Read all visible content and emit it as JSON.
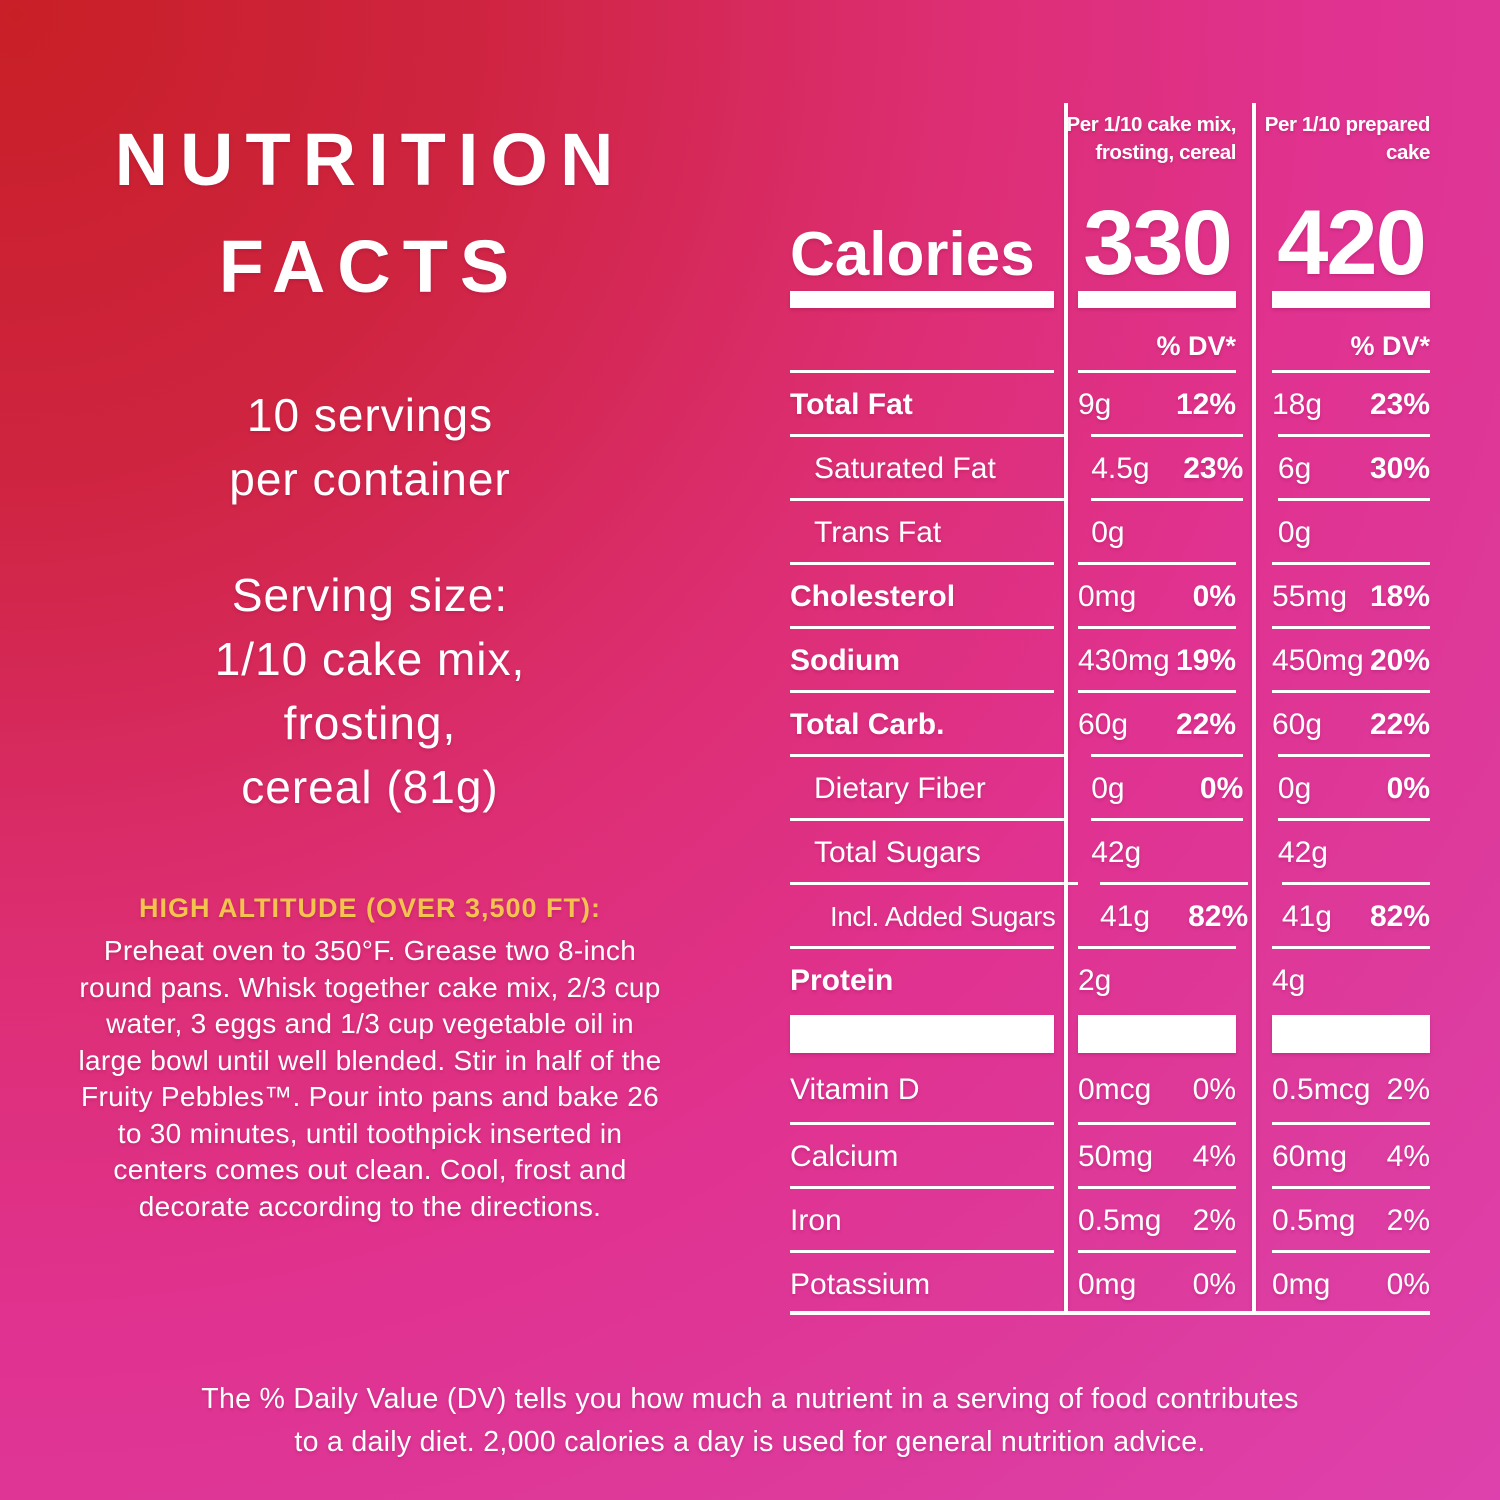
{
  "background": {
    "gradient_from": "#c81f27",
    "gradient_mid": "#e02e7d",
    "gradient_to": "#de41ad",
    "text_color": "#ffffff"
  },
  "left_panel": {
    "title_line1": "NUTRITION",
    "title_line2": "FACTS",
    "servings_line1": "10 servings",
    "servings_line2": "per container",
    "serving_size_lines": [
      "Serving size:",
      "1/10 cake mix,",
      "frosting,",
      "cereal (81g)"
    ],
    "high_altitude_heading": "HIGH ALTITUDE (OVER 3,500 FT):",
    "high_altitude_heading_color": "#f4c24f",
    "high_altitude_body": "Preheat oven to 350°F. Grease two 8-inch round pans. Whisk together cake mix, 2/3 cup water, 3 eggs and 1/3 cup vegetable oil in large bowl until well blended. Stir in half of the Fruity Pebbles™. Pour into pans and bake 26 to 30 minutes, until toothpick inserted in centers comes out clean. Cool, frost and decorate according to the directions."
  },
  "table": {
    "calories_label": "Calories",
    "col1": {
      "header_line1": "Per 1/10 cake mix,",
      "header_line2": "frosting, cereal",
      "calories": "330",
      "dv_header": "% DV*"
    },
    "col2": {
      "header_line1": "Per 1/10 prepared",
      "header_line2": "cake",
      "calories": "420",
      "dv_header": "% DV*"
    },
    "rows": [
      {
        "label": "Total Fat",
        "a1": "9g",
        "d1": "12%",
        "a2": "18g",
        "d2": "23%"
      },
      {
        "label": "Saturated Fat",
        "a1": "4.5g",
        "d1": "23%",
        "a2": "6g",
        "d2": "30%"
      },
      {
        "label": "Trans Fat",
        "a1": "0g",
        "d1": "",
        "a2": "0g",
        "d2": ""
      },
      {
        "label": "Cholesterol",
        "a1": "0mg",
        "d1": "0%",
        "a2": "55mg",
        "d2": "18%"
      },
      {
        "label": "Sodium",
        "a1": "430mg",
        "d1": "19%",
        "a2": "450mg",
        "d2": "20%"
      },
      {
        "label": "Total Carb.",
        "a1": "60g",
        "d1": "22%",
        "a2": "60g",
        "d2": "22%"
      },
      {
        "label": "Dietary Fiber",
        "a1": "0g",
        "d1": "0%",
        "a2": "0g",
        "d2": "0%"
      },
      {
        "label": "Total Sugars",
        "a1": "42g",
        "d1": "",
        "a2": "42g",
        "d2": ""
      },
      {
        "label": "Incl. Added Sugars",
        "a1": "41g",
        "d1": "82%",
        "a2": "41g",
        "d2": "82%"
      },
      {
        "label": "Protein",
        "a1": "2g",
        "d1": "",
        "a2": "4g",
        "d2": ""
      },
      {
        "label": "Vitamin D",
        "a1": "0mcg",
        "d1": "0%",
        "a2": "0.5mcg",
        "d2": "2%"
      },
      {
        "label": "Calcium",
        "a1": "50mg",
        "d1": "4%",
        "a2": "60mg",
        "d2": "4%"
      },
      {
        "label": "Iron",
        "a1": "0.5mg",
        "d1": "2%",
        "a2": "0.5mg",
        "d2": "2%"
      },
      {
        "label": "Potassium",
        "a1": "0mg",
        "d1": "0%",
        "a2": "0mg",
        "d2": "0%"
      }
    ]
  },
  "footnote_line1": "The % Daily Value (DV) tells you how much a nutrient in a serving of food contributes",
  "footnote_line2": "to a daily diet. 2,000 calories a day is used for general nutrition advice."
}
